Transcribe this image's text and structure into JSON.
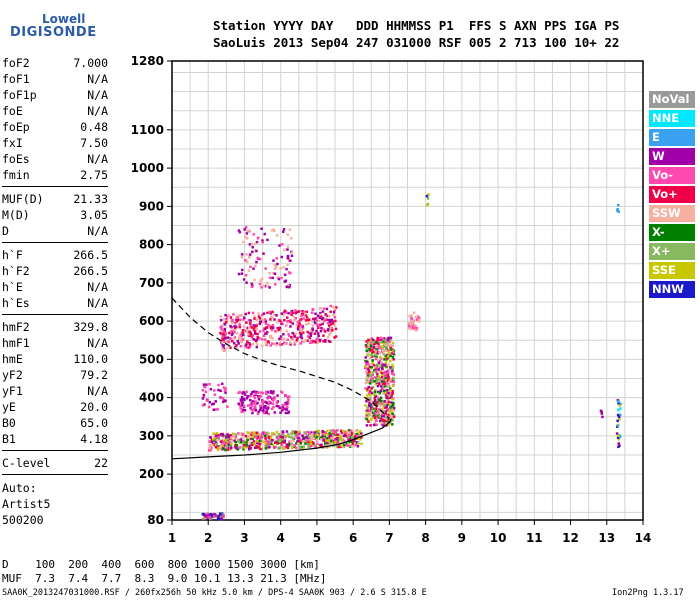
{
  "logo": {
    "line1": "Lowell",
    "line2": "DIGISONDE"
  },
  "header": {
    "line1": "Station YYYY DAY   DDD HHMMSS P1  FFS S AXN PPS IGA PS",
    "line2": "SaoLuis 2013 Sep04 247 031000 RSF 005 2 713 100 10+ 22"
  },
  "params": [
    [
      {
        "k": "foF2",
        "v": "7.000"
      },
      {
        "k": "foF1",
        "v": "N/A"
      },
      {
        "k": "foF1p",
        "v": "N/A"
      },
      {
        "k": "foE",
        "v": "N/A"
      },
      {
        "k": "foEp",
        "v": "0.48"
      },
      {
        "k": "fxI",
        "v": "7.50"
      },
      {
        "k": "foEs",
        "v": "N/A"
      },
      {
        "k": "fmin",
        "v": "2.75"
      }
    ],
    [
      {
        "k": "MUF(D)",
        "v": "21.33"
      },
      {
        "k": "M(D)",
        "v": "3.05"
      },
      {
        "k": "D",
        "v": "N/A"
      }
    ],
    [
      {
        "k": "h`F",
        "v": "266.5"
      },
      {
        "k": "h`F2",
        "v": "266.5"
      },
      {
        "k": "h`E",
        "v": "N/A"
      },
      {
        "k": "h`Es",
        "v": "N/A"
      }
    ],
    [
      {
        "k": "hmF2",
        "v": "329.8"
      },
      {
        "k": "hmF1",
        "v": "N/A"
      },
      {
        "k": "hmE",
        "v": "110.0"
      },
      {
        "k": "yF2",
        "v": "79.2"
      },
      {
        "k": "yF1",
        "v": "N/A"
      },
      {
        "k": "yE",
        "v": "20.0"
      },
      {
        "k": "B0",
        "v": "65.0"
      },
      {
        "k": "B1",
        "v": "4.18"
      }
    ],
    [
      {
        "k": "C-level",
        "v": "22"
      }
    ]
  ],
  "auto": {
    "line1": "Auto:",
    "line2": "Artist5",
    "line3": "500200"
  },
  "footer": {
    "d_row": "D    100  200  400  600  800 1000 1500 3000 [km]",
    "muf_row": "MUF  7.3  7.4  7.7  8.3  9.0 10.1 13.3 21.3 [MHz]",
    "file_row": "SAA0K_2013247031000.RSF / 260fx256h 50 kHz 5.0 km / DPS-4 SAA0K 903 / 2.6 S 315.8 E",
    "version": "Ion2Png 1.3.17"
  },
  "legend": [
    {
      "label": "NoVal",
      "color": "#9a9a9a"
    },
    {
      "label": "NNE",
      "color": "#00e8ff"
    },
    {
      "label": "E",
      "color": "#3aa0f0"
    },
    {
      "label": "W",
      "color": "#a000a8"
    },
    {
      "label": "Vo-",
      "color": "#ff48b0"
    },
    {
      "label": "Vo+",
      "color": "#f00048"
    },
    {
      "label": "SSW",
      "color": "#f5b0a0"
    },
    {
      "label": "X-",
      "color": "#008000"
    },
    {
      "label": "X+",
      "color": "#88b860"
    },
    {
      "label": "SSE",
      "color": "#c8c800"
    },
    {
      "label": "NNW",
      "color": "#1a1ac8"
    }
  ],
  "chart_data": {
    "type": "scatter",
    "xlim": [
      1,
      14
    ],
    "ylim": [
      80,
      1280
    ],
    "x_ticks": [
      1,
      2,
      3,
      4,
      5,
      6,
      7,
      8,
      9,
      10,
      11,
      12,
      13,
      14
    ],
    "y_ticks": [
      80,
      200,
      300,
      400,
      500,
      600,
      700,
      800,
      900,
      1000,
      1100,
      1280
    ],
    "grid": true,
    "legend_placement": "right",
    "clusters": [
      {
        "x": [
          2.0,
          6.2
        ],
        "y": [
          265,
          310
        ],
        "n": 700,
        "colors": [
          "#f00048",
          "#ff48b0",
          "#a000a8",
          "#f5b0a0",
          "#88b860",
          "#c8c800",
          "#008000"
        ],
        "slope": 10
      },
      {
        "x": [
          6.3,
          7.1
        ],
        "y": [
          330,
          560
        ],
        "n": 600,
        "colors": [
          "#f00048",
          "#a000a8",
          "#f5b0a0",
          "#88b860",
          "#c8c800",
          "#008000",
          "#ff48b0"
        ],
        "slope": 0
      },
      {
        "x": [
          2.3,
          5.5
        ],
        "y": [
          525,
          620
        ],
        "n": 480,
        "colors": [
          "#a000a8",
          "#ff48b0",
          "#f5b0a0",
          "#f00048"
        ],
        "slope": 25
      },
      {
        "x": [
          2.8,
          4.2
        ],
        "y": [
          360,
          420
        ],
        "n": 160,
        "colors": [
          "#a000a8",
          "#ff48b0"
        ],
        "slope": 0
      },
      {
        "x": [
          1.8,
          2.5
        ],
        "y": [
          370,
          440
        ],
        "n": 40,
        "colors": [
          "#a000a8",
          "#ff48b0"
        ],
        "slope": 0
      },
      {
        "x": [
          2.8,
          4.3
        ],
        "y": [
          690,
          850
        ],
        "n": 120,
        "colors": [
          "#a000a8",
          "#ff48b0",
          "#f5b0a0"
        ],
        "slope": 0
      },
      {
        "x": [
          1.8,
          2.4
        ],
        "y": [
          85,
          100
        ],
        "n": 60,
        "colors": [
          "#a000a8",
          "#88b860",
          "#1a1ac8",
          "#ff48b0"
        ],
        "slope": 0
      },
      {
        "x": [
          7.5,
          7.8
        ],
        "y": [
          580,
          630
        ],
        "n": 40,
        "colors": [
          "#f5b0a0",
          "#ff48b0"
        ],
        "slope": 0
      },
      {
        "x": [
          13.25,
          13.35
        ],
        "y": [
          270,
          410
        ],
        "n": 25,
        "colors": [
          "#1a1ac8",
          "#c8c800",
          "#a000a8",
          "#00e8ff",
          "#3aa0f0"
        ],
        "slope": 0
      },
      {
        "x": [
          12.8,
          12.85
        ],
        "y": [
          350,
          370
        ],
        "n": 4,
        "colors": [
          "#a000a8"
        ],
        "slope": 0
      },
      {
        "x": [
          8.0,
          8.05
        ],
        "y": [
          905,
          935
        ],
        "n": 5,
        "colors": [
          "#1a1ac8",
          "#88b860",
          "#c8c800"
        ],
        "slope": 0
      },
      {
        "x": [
          13.25,
          13.3
        ],
        "y": [
          885,
          910
        ],
        "n": 4,
        "colors": [
          "#a000a8",
          "#3aa0f0"
        ],
        "slope": 0
      }
    ],
    "profile_line": [
      [
        1.0,
        240
      ],
      [
        2.0,
        245
      ],
      [
        3.0,
        250
      ],
      [
        4.0,
        257
      ],
      [
        5.0,
        268
      ],
      [
        5.6,
        278
      ],
      [
        6.0,
        290
      ],
      [
        6.4,
        305
      ],
      [
        6.8,
        320
      ],
      [
        7.0,
        335
      ],
      [
        7.05,
        345
      ]
    ],
    "dashed_line": [
      [
        1.0,
        660
      ],
      [
        1.5,
        610
      ],
      [
        2.0,
        570
      ],
      [
        2.5,
        540
      ],
      [
        3.0,
        515
      ],
      [
        3.5,
        497
      ],
      [
        4.0,
        482
      ],
      [
        4.5,
        470
      ],
      [
        5.0,
        455
      ],
      [
        5.5,
        440
      ],
      [
        6.0,
        418
      ],
      [
        6.5,
        390
      ],
      [
        7.0,
        345
      ]
    ]
  }
}
